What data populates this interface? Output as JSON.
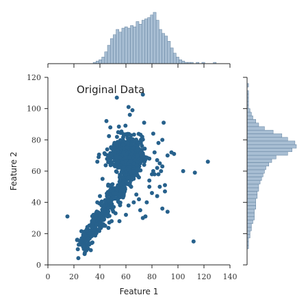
{
  "chart_data": {
    "type": "scatter",
    "title": "",
    "annotation": "Original Data",
    "xlabel": "Feature 1",
    "ylabel": "Feature 2",
    "xlim": [
      0,
      140
    ],
    "ylim": [
      0,
      120
    ],
    "x_ticks": [
      0,
      20,
      40,
      60,
      80,
      100,
      120,
      140
    ],
    "y_ticks": [
      0,
      20,
      40,
      60,
      80,
      100,
      120
    ],
    "grid": false,
    "marginal_histograms": true,
    "colors": {
      "points": "#27618c",
      "hist_fill": "#a8bed3",
      "hist_edge": "#5f7f9d"
    },
    "points_summary": {
      "main_cluster_x_mean": 58,
      "main_cluster_y_mean": 70,
      "trend": "positive correlation from about (25, 10) to (80, 75)"
    },
    "outliers": [
      [
        15,
        31
      ],
      [
        23,
        10
      ],
      [
        25,
        13
      ],
      [
        26,
        17
      ],
      [
        28,
        20
      ],
      [
        30,
        23
      ],
      [
        35,
        32
      ],
      [
        38,
        40
      ],
      [
        40,
        44
      ],
      [
        42,
        30
      ],
      [
        44,
        25
      ],
      [
        46,
        31
      ],
      [
        49,
        28
      ],
      [
        52,
        33
      ],
      [
        55,
        28
      ],
      [
        60,
        32
      ],
      [
        62,
        38
      ],
      [
        66,
        40
      ],
      [
        68,
        45
      ],
      [
        70,
        42
      ],
      [
        71,
        35
      ],
      [
        73,
        30
      ],
      [
        75,
        31
      ],
      [
        76,
        40
      ],
      [
        78,
        50
      ],
      [
        78,
        54
      ],
      [
        80,
        46
      ],
      [
        82,
        58
      ],
      [
        84,
        44
      ],
      [
        85,
        58
      ],
      [
        86,
        50
      ],
      [
        88,
        63
      ],
      [
        90,
        47
      ],
      [
        88,
        36
      ],
      [
        92,
        34
      ],
      [
        90,
        51
      ],
      [
        64,
        50
      ],
      [
        66,
        60
      ],
      [
        70,
        56
      ],
      [
        74,
        64
      ],
      [
        78,
        68
      ],
      [
        82,
        72
      ],
      [
        85,
        78
      ],
      [
        88,
        80
      ],
      [
        92,
        70
      ],
      [
        95,
        72
      ],
      [
        97,
        71
      ],
      [
        104,
        60
      ],
      [
        113,
        59
      ],
      [
        123,
        66
      ],
      [
        112,
        15
      ],
      [
        53,
        107
      ],
      [
        73,
        109
      ],
      [
        62,
        101
      ],
      [
        65,
        99
      ],
      [
        63,
        96
      ],
      [
        74,
        91
      ],
      [
        81,
        84
      ],
      [
        89,
        91
      ],
      [
        45,
        92
      ],
      [
        48,
        88
      ],
      [
        39,
        69
      ],
      [
        38,
        66
      ],
      [
        42,
        55
      ],
      [
        87,
        60
      ],
      [
        84,
        62
      ],
      [
        86,
        65
      ],
      [
        84,
        67
      ],
      [
        81,
        60
      ],
      [
        80,
        58
      ]
    ],
    "x_marginal": {
      "bins_start": 15,
      "bin_width": 2.2,
      "counts": [
        0,
        0,
        0,
        0,
        0,
        0,
        0,
        0,
        0,
        1,
        2,
        3,
        5,
        9,
        14,
        19,
        22,
        26,
        24,
        27,
        28,
        27,
        29,
        28,
        32,
        30,
        33,
        34,
        35,
        37,
        39,
        33,
        26,
        23,
        21,
        17,
        12,
        8,
        5,
        3,
        2,
        1,
        1,
        1,
        0,
        1,
        0,
        1,
        0,
        0,
        0,
        1
      ]
    },
    "y_marginal": {
      "bins_start": 8,
      "bin_width": 2.3,
      "counts": [
        0,
        1,
        1,
        1,
        2,
        2,
        3,
        3,
        4,
        5,
        5,
        5,
        6,
        6,
        6,
        7,
        7,
        8,
        8,
        9,
        10,
        11,
        12,
        13,
        15,
        17,
        20,
        28,
        31,
        34,
        33,
        28,
        24,
        18,
        12,
        8,
        6,
        4,
        3,
        2,
        1,
        1,
        1,
        1,
        1,
        0,
        1,
        0
      ]
    }
  }
}
